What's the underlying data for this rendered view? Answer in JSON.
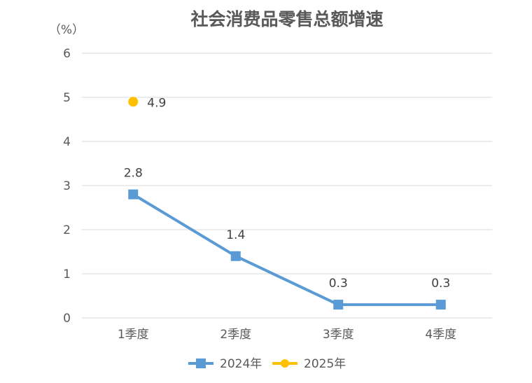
{
  "chart_data": {
    "type": "line",
    "title": "社会消费品零售总额增速",
    "unit_label": "（%）",
    "categories": [
      "1季度",
      "2季度",
      "3季度",
      "4季度"
    ],
    "ylim": [
      0,
      6
    ],
    "yticks": [
      "0",
      "1",
      "2",
      "3",
      "4",
      "5",
      "6"
    ],
    "grid": true,
    "legend_position": "bottom",
    "series": [
      {
        "name": "2024年",
        "values": [
          2.8,
          1.4,
          0.3,
          0.3
        ],
        "labels": [
          "2.8",
          "1.4",
          "0.3",
          "0.3"
        ],
        "color": "#5b9bd5",
        "marker": "square"
      },
      {
        "name": "2025年",
        "values": [
          4.9,
          null,
          null,
          null
        ],
        "labels": [
          "4.9",
          "",
          "",
          ""
        ],
        "color": "#ffc000",
        "marker": "circle"
      }
    ]
  }
}
